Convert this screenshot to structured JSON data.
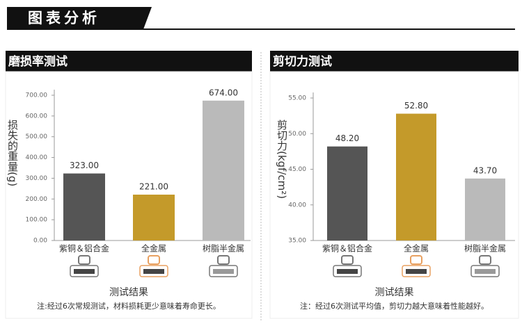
{
  "header": {
    "title": "图表分析"
  },
  "chart_data": [
    {
      "type": "bar",
      "title": "磨损率测试",
      "ylabel": "损失的重量(g)",
      "xlabel": "测试结果",
      "note": "注:经过6次常规测试，材料损耗更少意味着寿命更长。",
      "categories": [
        "紫铜＆铝合金",
        "全金属",
        "树脂半金属"
      ],
      "values": [
        323,
        221,
        674
      ],
      "value_labels": [
        "323.00",
        "221.00",
        "674.00"
      ],
      "colors": [
        "#555555",
        "#c49a2a",
        "#bababa"
      ],
      "ylim": [
        0,
        700
      ],
      "yticks": [
        {
          "value": 0,
          "label": "0.00"
        },
        {
          "value": 100,
          "label": "100.00"
        },
        {
          "value": 200,
          "label": "200.00"
        },
        {
          "value": 300,
          "label": "300.00"
        },
        {
          "value": 400,
          "label": "400.00"
        },
        {
          "value": 500,
          "label": "500.00"
        },
        {
          "value": 600,
          "label": "600.00"
        },
        {
          "value": 700,
          "label": "700.00"
        }
      ]
    },
    {
      "type": "bar",
      "title": "剪切力测试",
      "ylabel": "剪切力(kgf/cm²)",
      "xlabel": "测试结果",
      "note": "注：经过6次测试平均值，剪切力越大意味着性能越好。",
      "categories": [
        "紫铜＆铝合金",
        "全金属",
        "树脂半金属"
      ],
      "values": [
        48.2,
        52.8,
        43.7
      ],
      "value_labels": [
        "48.20",
        "52.80",
        "43.70"
      ],
      "colors": [
        "#555555",
        "#c49a2a",
        "#bababa"
      ],
      "ylim": [
        35,
        55
      ],
      "yticks": [
        {
          "value": 35,
          "label": "35.00"
        },
        {
          "value": 40,
          "label": "40.00"
        },
        {
          "value": 45,
          "label": "45.00"
        },
        {
          "value": 50,
          "label": "50.00"
        },
        {
          "value": 55,
          "label": "55.00"
        }
      ]
    }
  ]
}
